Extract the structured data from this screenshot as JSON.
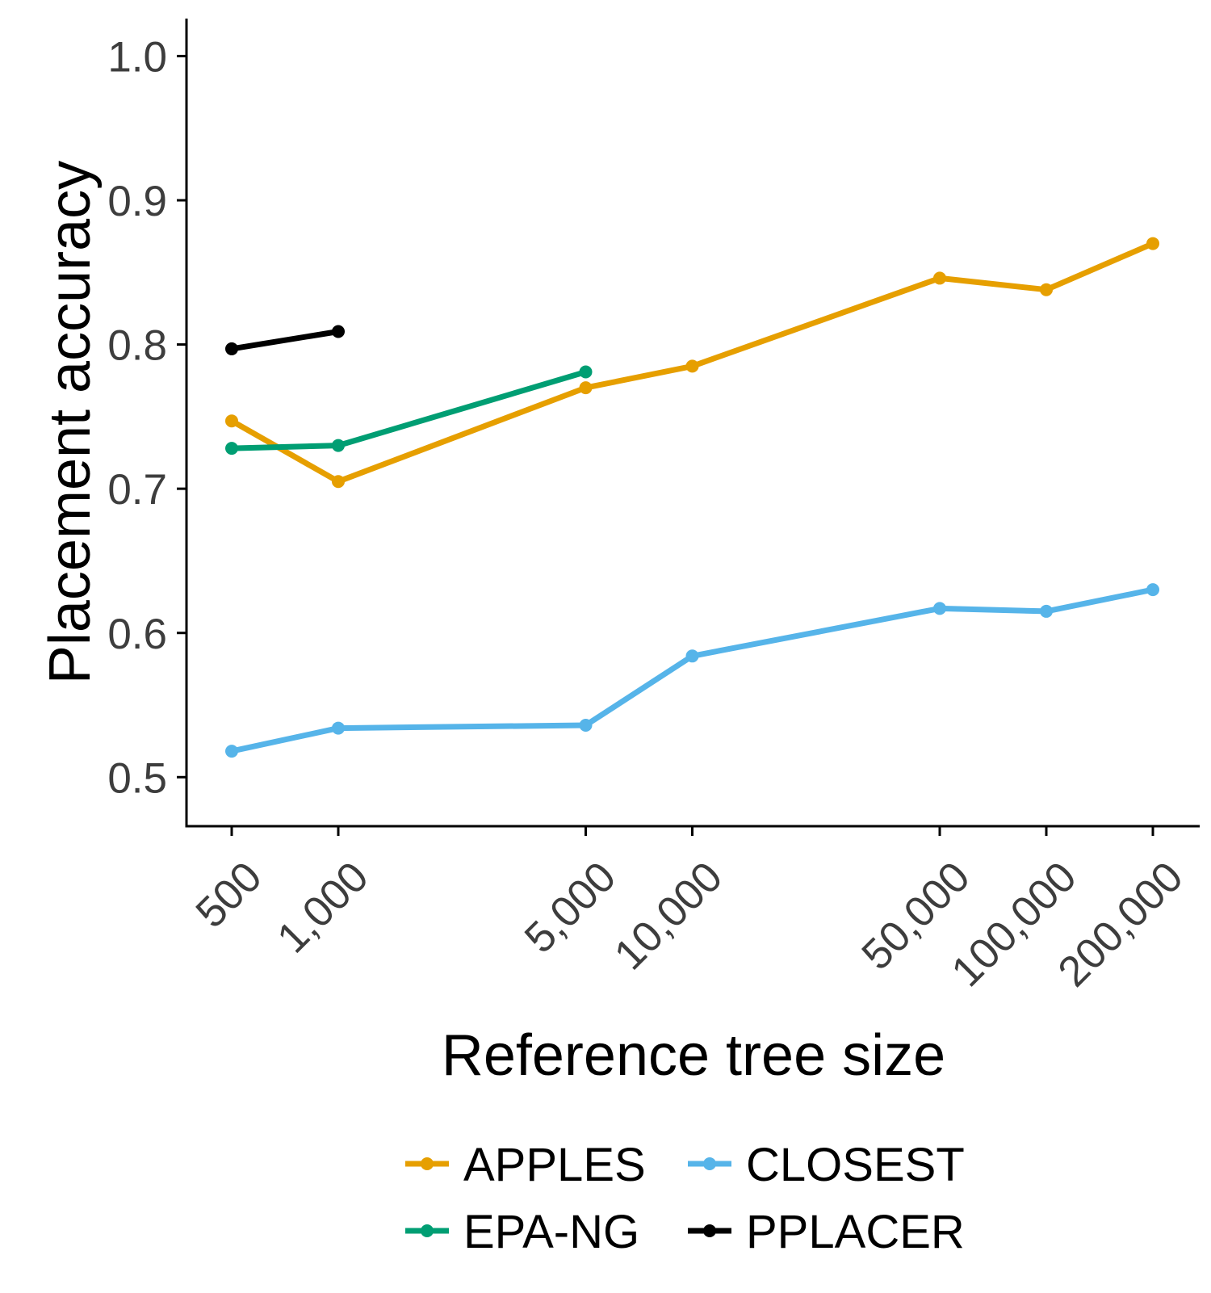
{
  "chart_data": {
    "type": "line",
    "xlabel": "Reference tree size",
    "ylabel": "Placement accuracy",
    "x_scale": "log",
    "x_ticks": [
      500,
      1000,
      5000,
      10000,
      50000,
      100000,
      200000
    ],
    "x_tick_labels": [
      "500",
      "1,000",
      "5,000",
      "10,000",
      "50,000",
      "100,000",
      "200,000"
    ],
    "y_ticks": [
      0.5,
      0.6,
      0.7,
      0.8,
      0.9,
      1.0
    ],
    "y_tick_labels": [
      "0.5",
      "0.6",
      "0.7",
      "0.8",
      "0.9",
      "1.0"
    ],
    "ylim": [
      0.466,
      1.026
    ],
    "grid": false,
    "legend_position": "bottom",
    "series": [
      {
        "name": "APPLES",
        "color": "#E69F00",
        "x": [
          500,
          1000,
          5000,
          10000,
          50000,
          100000,
          200000
        ],
        "y": [
          0.747,
          0.705,
          0.77,
          0.785,
          0.846,
          0.838,
          0.87
        ]
      },
      {
        "name": "CLOSEST",
        "color": "#56B4E9",
        "x": [
          500,
          1000,
          5000,
          10000,
          50000,
          100000,
          200000
        ],
        "y": [
          0.518,
          0.534,
          0.536,
          0.584,
          0.617,
          0.615,
          0.63
        ]
      },
      {
        "name": "EPA-NG",
        "color": "#009E73",
        "x": [
          500,
          1000,
          5000
        ],
        "y": [
          0.728,
          0.73,
          0.781
        ]
      },
      {
        "name": "PPLACER",
        "color": "#000000",
        "x": [
          500,
          1000
        ],
        "y": [
          0.797,
          0.809
        ]
      }
    ]
  }
}
